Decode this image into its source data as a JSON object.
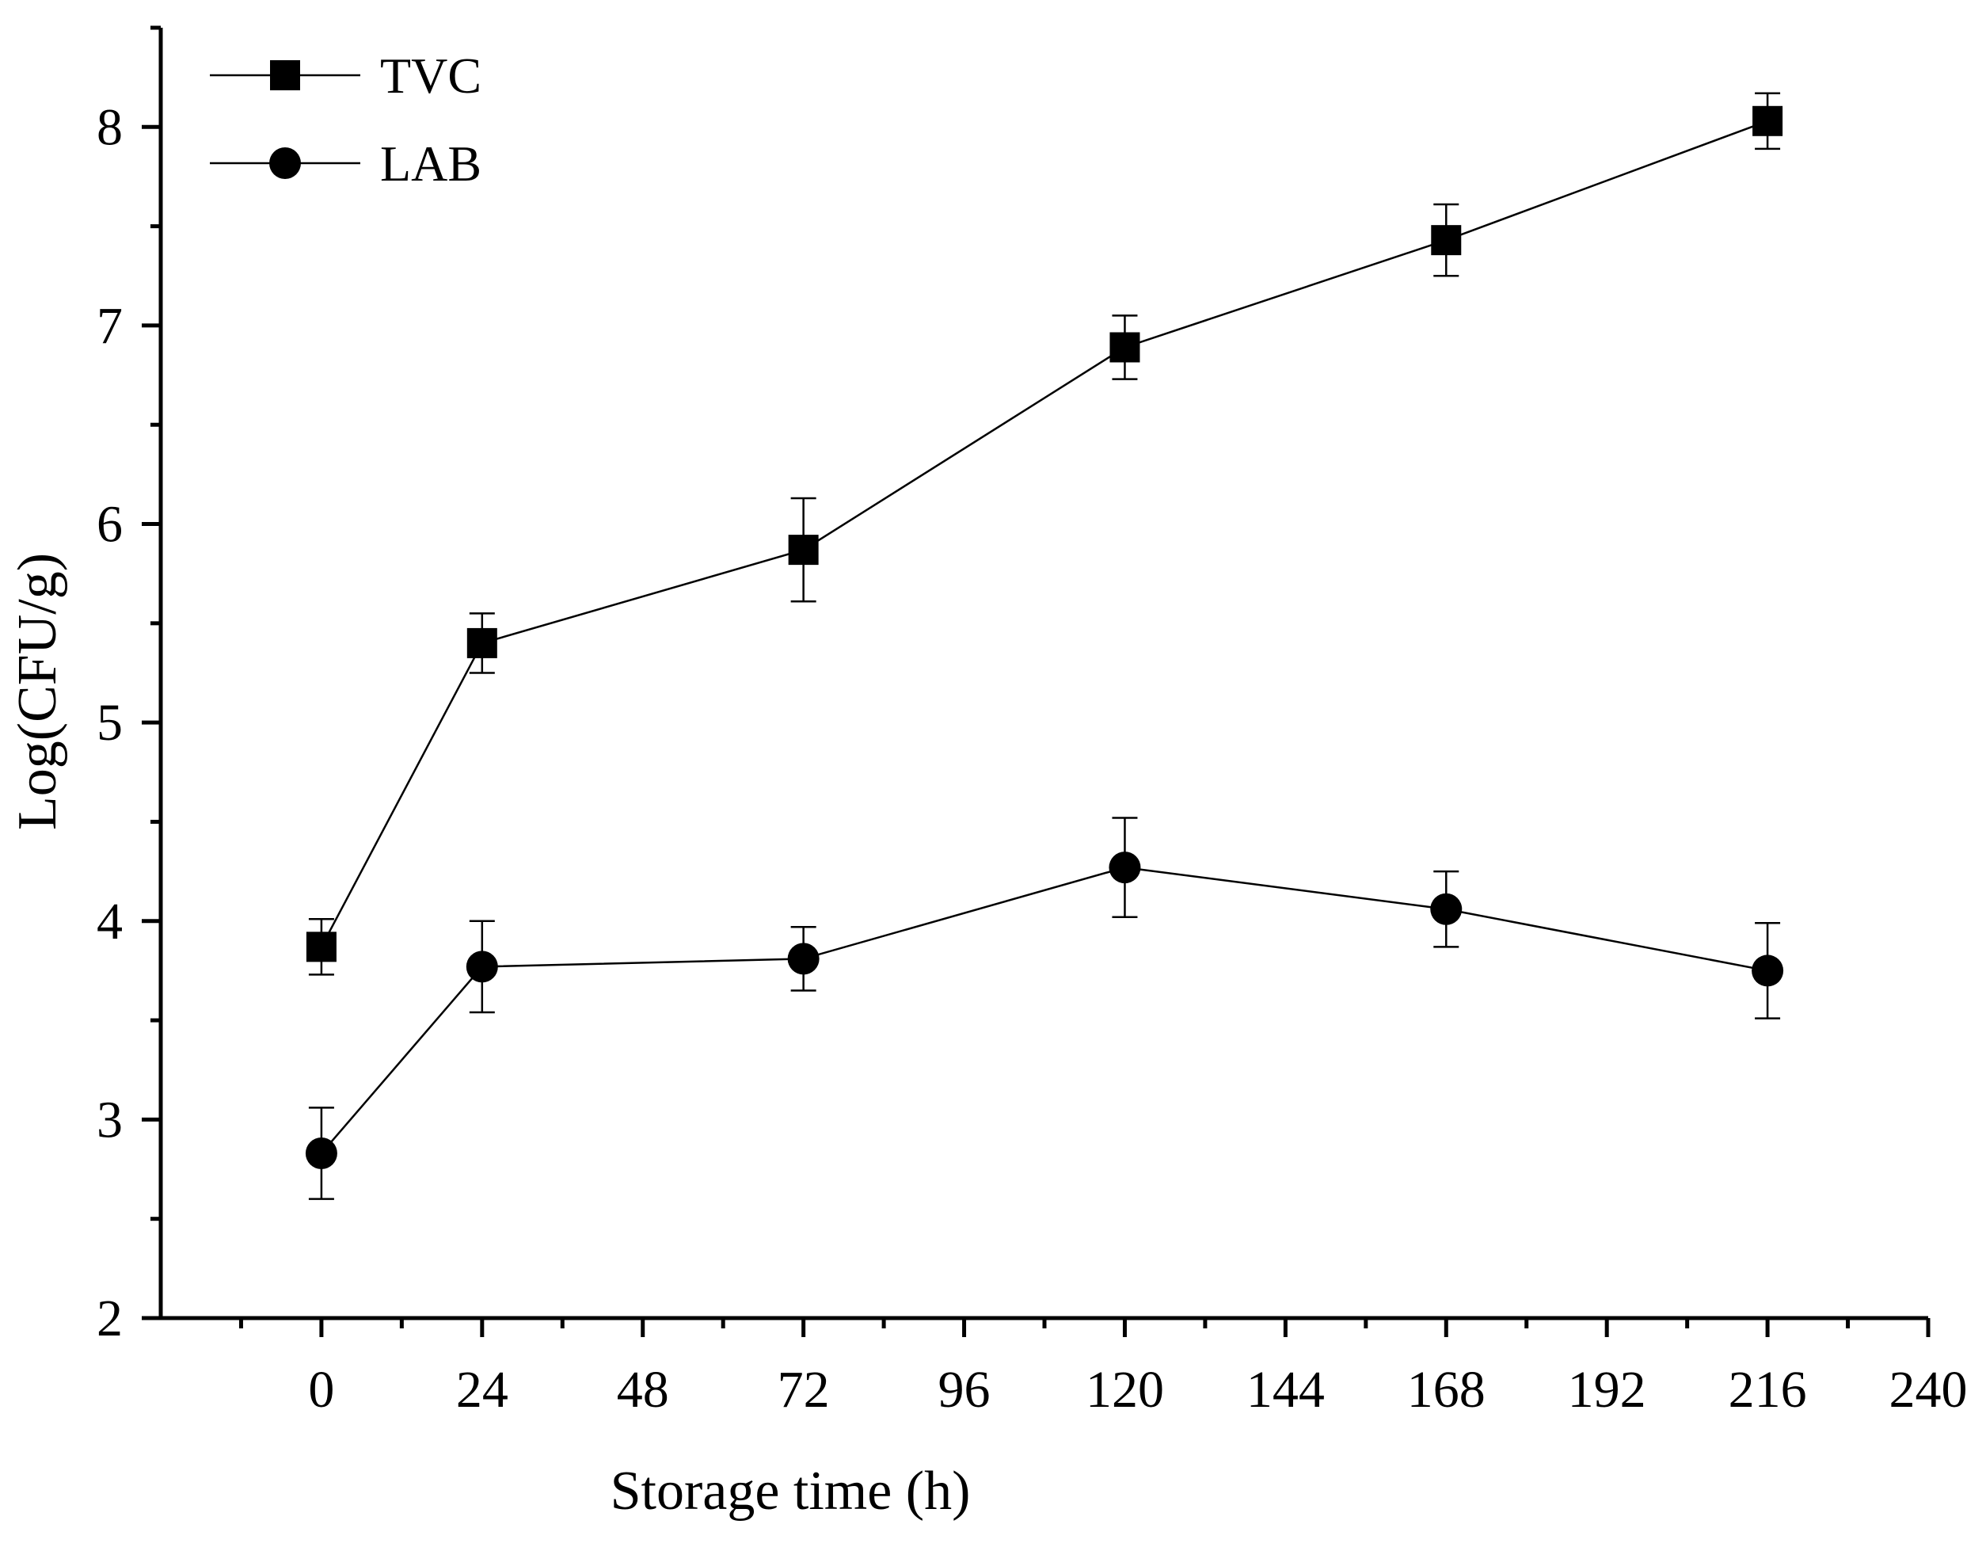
{
  "chart_data": {
    "type": "line",
    "title": "",
    "xlabel": "Storage time (h)",
    "ylabel": "Log(CFU/g)",
    "xlim": [
      -24,
      240
    ],
    "ylim": [
      2,
      8.5
    ],
    "x_ticks": [
      0,
      24,
      48,
      72,
      96,
      120,
      144,
      168,
      192,
      216,
      240
    ],
    "x_minor_ticks": [
      -12,
      12,
      36,
      60,
      84,
      108,
      132,
      156,
      180,
      204,
      228
    ],
    "y_ticks": [
      2,
      3,
      4,
      5,
      6,
      7,
      8
    ],
    "y_minor_ticks": [
      2.5,
      3.5,
      4.5,
      5.5,
      6.5,
      7.5,
      8.5
    ],
    "x_tick_labels": [
      "0",
      "24",
      "48",
      "72",
      "96",
      "120",
      "144",
      "168",
      "192",
      "216",
      "240"
    ],
    "y_tick_labels": [
      "2",
      "3",
      "4",
      "5",
      "6",
      "7",
      "8"
    ],
    "grid": false,
    "legend_position": "top-left",
    "x": [
      0,
      24,
      72,
      120,
      168,
      216
    ],
    "series": [
      {
        "name": "TVC",
        "marker": "square",
        "values": [
          3.87,
          5.4,
          5.87,
          6.89,
          7.43,
          8.03
        ],
        "errors": [
          0.14,
          0.15,
          0.26,
          0.16,
          0.18,
          0.14
        ]
      },
      {
        "name": "LAB",
        "marker": "circle",
        "values": [
          2.83,
          3.77,
          3.81,
          4.27,
          4.06,
          3.75
        ],
        "errors": [
          0.23,
          0.23,
          0.16,
          0.25,
          0.19,
          0.24
        ]
      }
    ]
  }
}
